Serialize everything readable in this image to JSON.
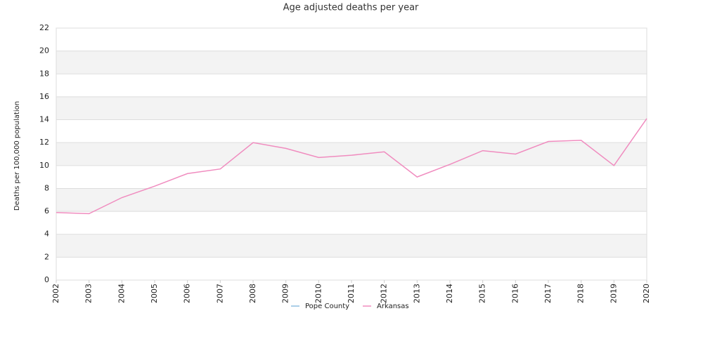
{
  "chart_data": {
    "type": "line",
    "title": "Age adjusted deaths per year",
    "y_label": "Deaths per 100,000 population",
    "x": [
      2002,
      2003,
      2004,
      2005,
      2006,
      2007,
      2008,
      2009,
      2010,
      2011,
      2012,
      2013,
      2014,
      2015,
      2016,
      2017,
      2018,
      2019,
      2020
    ],
    "xlim": [
      2002,
      2020
    ],
    "xticks": [
      2002,
      2003,
      2004,
      2005,
      2006,
      2007,
      2008,
      2009,
      2010,
      2011,
      2012,
      2013,
      2014,
      2015,
      2016,
      2017,
      2018,
      2019,
      2020
    ],
    "ylim": [
      0,
      22
    ],
    "yticks": [
      0,
      2,
      4,
      6,
      8,
      10,
      12,
      14,
      16,
      18,
      20,
      22
    ],
    "grid": true,
    "legend": "bottom",
    "series": [
      {
        "name": "Pope County",
        "color": "#8fbfe0",
        "values": [
          null,
          null,
          null,
          null,
          null,
          null,
          null,
          null,
          null,
          null,
          null,
          null,
          null,
          null,
          null,
          null,
          null,
          null,
          null
        ]
      },
      {
        "name": "Arkansas",
        "color": "#f08cbf",
        "values": [
          5.9,
          5.8,
          7.2,
          8.2,
          9.3,
          9.7,
          12.0,
          11.5,
          10.7,
          10.9,
          11.2,
          9.0,
          10.1,
          11.3,
          11.0,
          12.1,
          12.2,
          10.0,
          14.1
        ]
      }
    ]
  }
}
